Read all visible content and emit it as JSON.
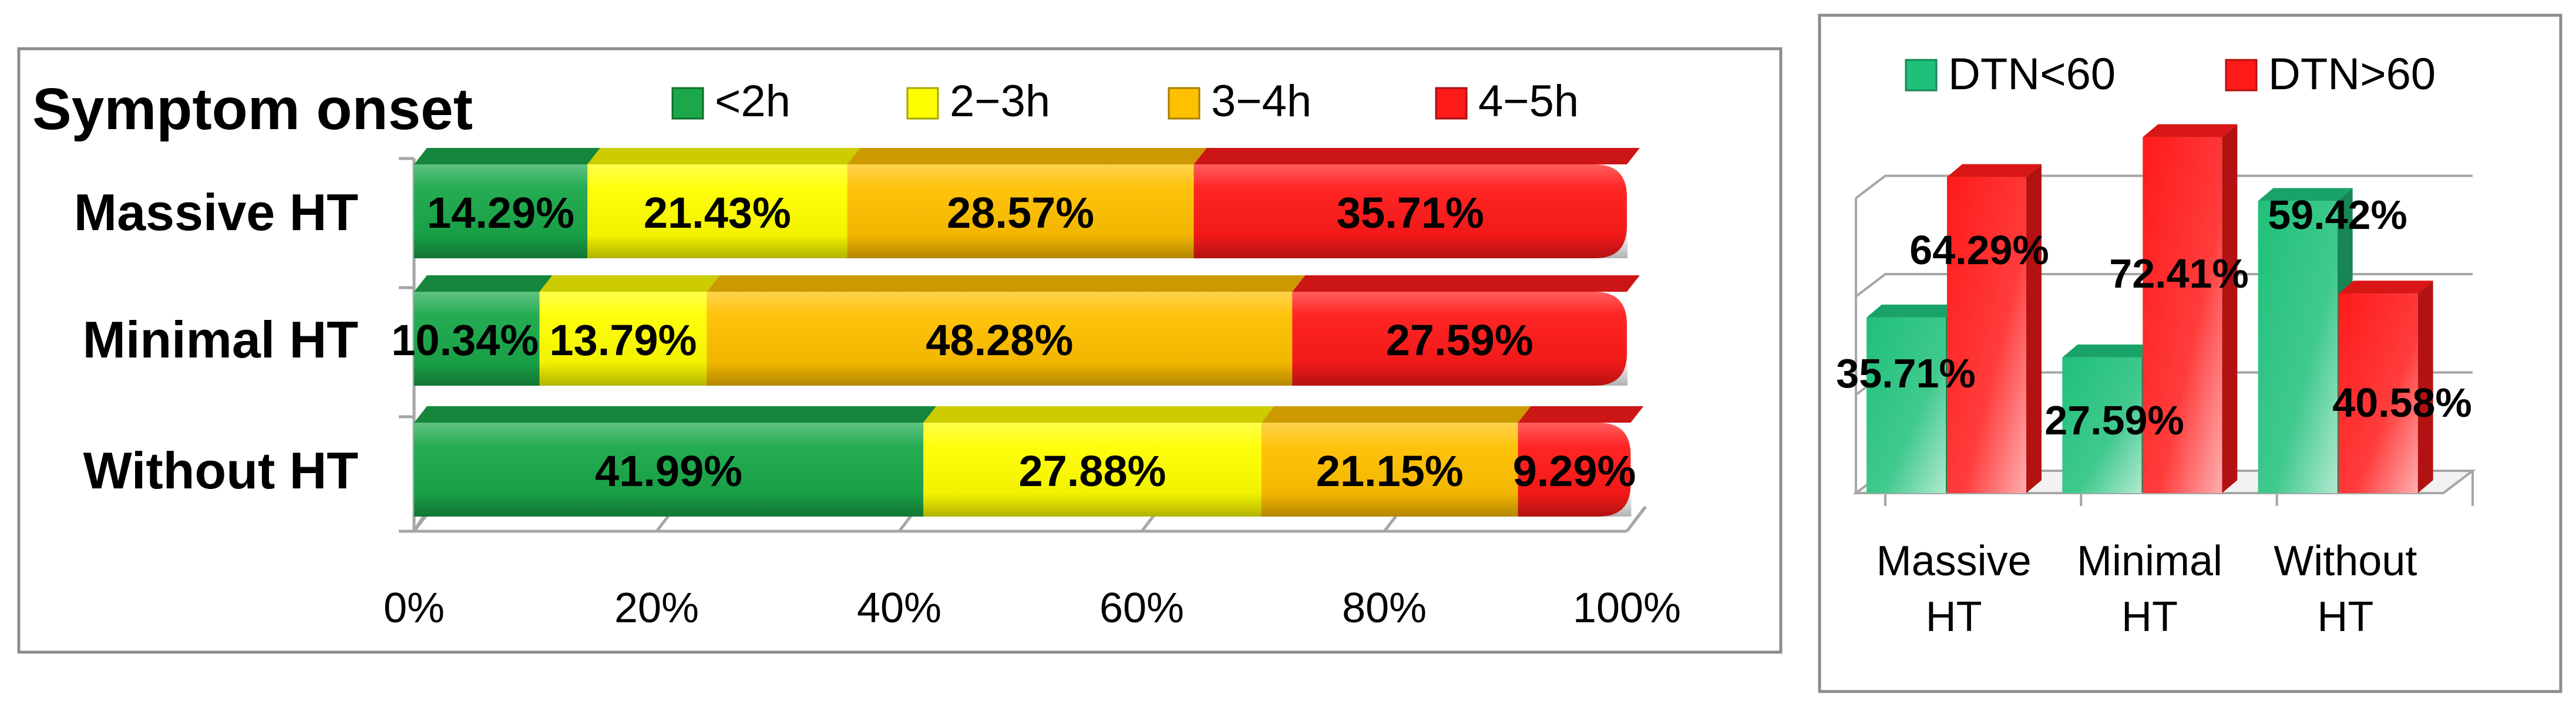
{
  "chart_data": [
    {
      "type": "bar",
      "orientation": "horizontal",
      "stacked": true,
      "percent_stacked": true,
      "title": "Symptom onset",
      "categories": [
        "Massive HT",
        "Minimal HT",
        "Without HT"
      ],
      "series": [
        {
          "name": "<2h",
          "color": "#1aa84a",
          "values": [
            14.29,
            10.34,
            41.99
          ],
          "labels": [
            "14.29%",
            "10.34%",
            "41.99%"
          ]
        },
        {
          "name": "2−3h",
          "color": "#ffff00",
          "values": [
            21.43,
            13.79,
            27.88
          ],
          "labels": [
            "21.43%",
            "13.79%",
            "27.88%"
          ]
        },
        {
          "name": "3−4h",
          "color": "#ffc000",
          "values": [
            28.57,
            48.28,
            21.15
          ],
          "labels": [
            "28.57%",
            "48.28%",
            "21.15%"
          ]
        },
        {
          "name": "4−5h",
          "color": "#ff1a1a",
          "values": [
            35.71,
            27.59,
            9.29
          ],
          "labels": [
            "35.71%",
            "27.59%",
            "9.29%"
          ]
        }
      ],
      "xlim": [
        0,
        100
      ],
      "x_ticks": [
        "0%",
        "20%",
        "40%",
        "60%",
        "80%",
        "100%"
      ],
      "legend_position": "top",
      "grid": false
    },
    {
      "type": "bar",
      "orientation": "vertical",
      "style": "3d-clustered",
      "categories": [
        [
          "Massive",
          "HT"
        ],
        [
          "Minimal",
          "HT"
        ],
        [
          "Without",
          "HT"
        ]
      ],
      "series": [
        {
          "name": "DTN<60",
          "color": "#1fc07a",
          "values": [
            35.71,
            27.59,
            59.42
          ],
          "labels": [
            "35.71%",
            "27.59%",
            "59.42%"
          ]
        },
        {
          "name": "DTN>60",
          "color": "#ff1a1a",
          "values": [
            64.29,
            72.41,
            40.58
          ],
          "labels": [
            "64.29%",
            "72.41%",
            "40.58%"
          ]
        }
      ],
      "ylim": [
        0,
        80
      ],
      "legend_position": "top",
      "grid": true
    }
  ]
}
